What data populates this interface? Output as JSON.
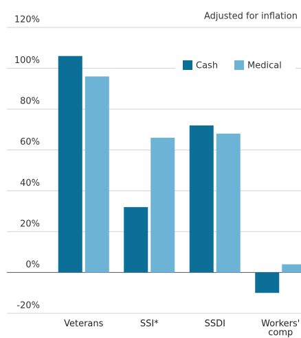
{
  "chart_data": {
    "type": "bar",
    "note": "Adjusted for inflation",
    "categories": [
      "Veterans",
      "SSI*",
      "SSDI",
      "Workers' comp"
    ],
    "series": [
      {
        "name": "Cash",
        "color": "#0b6f98",
        "values": [
          106,
          32,
          72,
          -10
        ]
      },
      {
        "name": "Medical",
        "color": "#6cb3d6",
        "values": [
          96,
          66,
          68,
          4
        ]
      }
    ],
    "ylim": [
      -20,
      120
    ],
    "yticks": [
      {
        "value": -20,
        "label": "-20%"
      },
      {
        "value": 0,
        "label": "0%"
      },
      {
        "value": 20,
        "label": "20%"
      },
      {
        "value": 40,
        "label": "40%"
      },
      {
        "value": 60,
        "label": "60%"
      },
      {
        "value": 80,
        "label": "80%"
      },
      {
        "value": 100,
        "label": "100%"
      },
      {
        "value": 120,
        "label": "120%"
      }
    ],
    "grid": true,
    "legend": "top-right"
  }
}
